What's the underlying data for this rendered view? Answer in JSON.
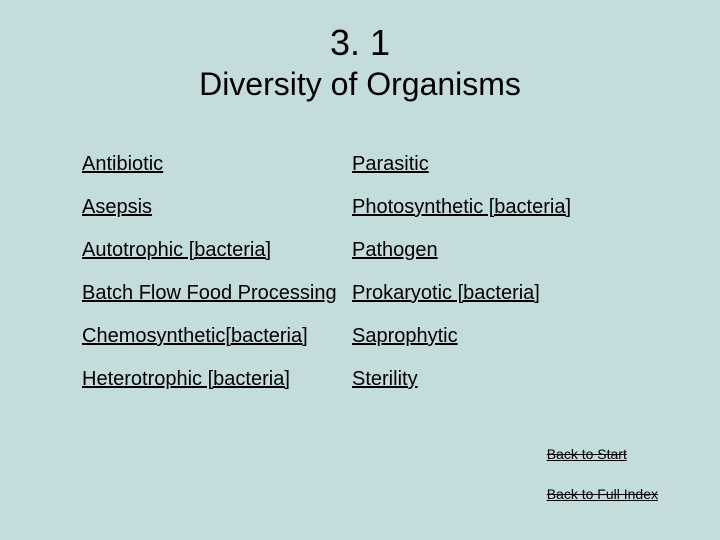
{
  "title": {
    "number": "3. 1",
    "text": "Diversity of Organisms"
  },
  "columns": {
    "left": [
      "Antibiotic",
      "Asepsis",
      "Autotrophic [bacteria]",
      "Batch Flow Food Processing",
      "Chemosynthetic[bacteria]",
      "Heterotrophic [bacteria]"
    ],
    "right": [
      "Parasitic",
      "Photosynthetic [bacteria]",
      "Pathogen",
      "Prokaryotic [bacteria]",
      "Saprophytic",
      "Sterility"
    ]
  },
  "nav": {
    "back_start": "Back to Start",
    "back_full_index": "Back to Full  Index"
  },
  "colors": {
    "background": "#c4dcdc",
    "text": "#000000"
  }
}
